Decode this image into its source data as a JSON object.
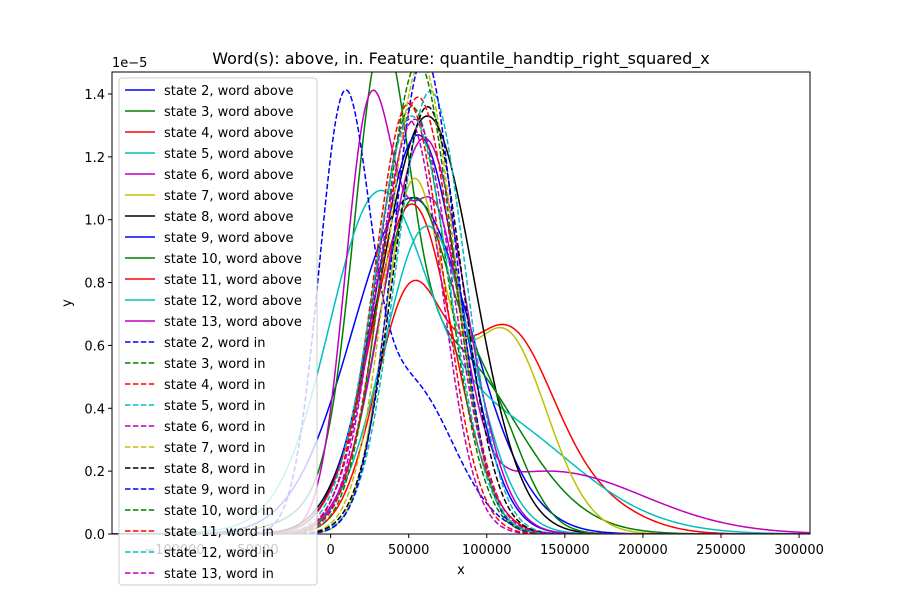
{
  "chart_data": {
    "type": "line",
    "title": "Word(s): above, in. Feature: quantile_handtip_right_squared_x",
    "xlabel": "x",
    "ylabel": "y",
    "y_multiplier_label": "1e−5",
    "xlim": [
      -140000,
      307000
    ],
    "ylim": [
      0,
      1.47
    ],
    "x_ticks": [
      0,
      50000,
      100000,
      150000,
      200000,
      250000,
      300000
    ],
    "x_tick_labels": [
      "0",
      "50000",
      "100000",
      "150000",
      "200000",
      "250000",
      "300000"
    ],
    "x_ticks_partial": [
      -100000,
      -50000
    ],
    "x_ticks_partial_labels": [
      "−100000",
      "−50000"
    ],
    "y_ticks": [
      0,
      0.2,
      0.4,
      0.6,
      0.8,
      1.0,
      1.2,
      1.4
    ],
    "y_tick_labels": [
      "0.0",
      "0.2",
      "0.4",
      "0.6",
      "0.8",
      "1.0",
      "1.2",
      "1.4"
    ],
    "grid": false,
    "legend_position": "upper-left",
    "series": [
      {
        "name": "state 2, word above",
        "color": "#0000ff",
        "dash": "solid",
        "components": [
          {
            "w": 1,
            "mu": 52000,
            "sigma": 38000,
            "peak": 1.07
          }
        ]
      },
      {
        "name": "state 3, word above",
        "color": "#008000",
        "dash": "solid",
        "components": [
          {
            "w": 1,
            "mu": 32000,
            "sigma": 17000,
            "peak": 1.17
          },
          {
            "w": 1,
            "mu": 72000,
            "sigma": 45000,
            "peak": 0.6
          }
        ]
      },
      {
        "name": "state 4, word above",
        "color": "#ff0000",
        "dash": "solid",
        "components": [
          {
            "w": 1,
            "mu": 50000,
            "sigma": 22000,
            "peak": 0.72
          },
          {
            "w": 1,
            "mu": 112000,
            "sigma": 30000,
            "peak": 0.64
          },
          {
            "w": 1,
            "mu": 170000,
            "sigma": 30000,
            "peak": 0.08
          }
        ]
      },
      {
        "name": "state 5, word above",
        "color": "#00bfbf",
        "dash": "solid",
        "components": [
          {
            "w": 1,
            "mu": 28000,
            "sigma": 30000,
            "peak": 0.85
          },
          {
            "w": 1,
            "mu": 90000,
            "sigma": 60000,
            "peak": 0.4
          }
        ]
      },
      {
        "name": "state 6, word above",
        "color": "#bf00bf",
        "dash": "solid",
        "components": [
          {
            "w": 1,
            "mu": 25000,
            "sigma": 16000,
            "peak": 1.3
          },
          {
            "w": 1,
            "mu": 66000,
            "sigma": 18000,
            "peak": 0.92
          },
          {
            "w": 1,
            "mu": 140000,
            "sigma": 60000,
            "peak": 0.2
          }
        ]
      },
      {
        "name": "state 7, word above",
        "color": "#bfbf00",
        "dash": "solid",
        "components": [
          {
            "w": 1,
            "mu": 52000,
            "sigma": 18000,
            "peak": 1.05
          },
          {
            "w": 1,
            "mu": 110000,
            "sigma": 28000,
            "peak": 0.65
          }
        ]
      },
      {
        "name": "state 8, word above",
        "color": "#000000",
        "dash": "solid",
        "components": [
          {
            "w": 1,
            "mu": 62000,
            "sigma": 30000,
            "peak": 1.33
          }
        ]
      },
      {
        "name": "state 9, word above",
        "color": "#0000ff",
        "dash": "solid",
        "components": [
          {
            "w": 1,
            "mu": 56000,
            "sigma": 27000,
            "peak": 1.27
          }
        ]
      },
      {
        "name": "state 10, word above",
        "color": "#008000",
        "dash": "solid",
        "components": [
          {
            "w": 1,
            "mu": 52000,
            "sigma": 23000,
            "peak": 1.03
          },
          {
            "w": 1,
            "mu": 100000,
            "sigma": 22000,
            "peak": 0.4
          }
        ]
      },
      {
        "name": "state 11, word above",
        "color": "#ff0000",
        "dash": "solid",
        "components": [
          {
            "w": 1,
            "mu": 52000,
            "sigma": 26000,
            "peak": 1.05
          }
        ]
      },
      {
        "name": "state 12, word above",
        "color": "#00bfbf",
        "dash": "solid",
        "components": [
          {
            "w": 1,
            "mu": 62000,
            "sigma": 28000,
            "peak": 0.98
          }
        ]
      },
      {
        "name": "state 13, word above",
        "color": "#bf00bf",
        "dash": "solid",
        "components": [
          {
            "w": 1,
            "mu": 60000,
            "sigma": 26000,
            "peak": 1.26
          }
        ]
      },
      {
        "name": "state 2, word in",
        "color": "#0000ff",
        "dash": "dashed",
        "components": [
          {
            "w": 1,
            "mu": 8000,
            "sigma": 16000,
            "peak": 1.25
          },
          {
            "w": 1,
            "mu": 50000,
            "sigma": 28000,
            "peak": 0.48
          }
        ]
      },
      {
        "name": "state 3, word in",
        "color": "#008000",
        "dash": "dashed",
        "components": [
          {
            "w": 1,
            "mu": 52000,
            "sigma": 23000,
            "peak": 1.36
          }
        ]
      },
      {
        "name": "state 4, word in",
        "color": "#ff0000",
        "dash": "dashed",
        "components": [
          {
            "w": 1,
            "mu": 56000,
            "sigma": 23000,
            "peak": 1.39
          }
        ]
      },
      {
        "name": "state 5, word in",
        "color": "#00bfbf",
        "dash": "dashed",
        "components": [
          {
            "w": 1,
            "mu": 64000,
            "sigma": 22000,
            "peak": 1.41
          }
        ]
      },
      {
        "name": "state 6, word in",
        "color": "#bf00bf",
        "dash": "dashed",
        "components": [
          {
            "w": 1,
            "mu": 50000,
            "sigma": 21000,
            "peak": 1.32
          }
        ]
      },
      {
        "name": "state 7, word in",
        "color": "#bfbf00",
        "dash": "dashed",
        "components": [
          {
            "w": 1,
            "mu": 58000,
            "sigma": 21000,
            "peak": 1.5
          }
        ]
      },
      {
        "name": "state 8, word in",
        "color": "#000000",
        "dash": "dashed",
        "components": [
          {
            "w": 1,
            "mu": 62000,
            "sigma": 22000,
            "peak": 1.36
          }
        ]
      },
      {
        "name": "state 9, word in",
        "color": "#0000ff",
        "dash": "dashed",
        "components": [
          {
            "w": 1,
            "mu": 60000,
            "sigma": 20000,
            "peak": 1.52
          }
        ]
      },
      {
        "name": "state 10, word in",
        "color": "#008000",
        "dash": "dashed",
        "components": [
          {
            "w": 1,
            "mu": 56000,
            "sigma": 22000,
            "peak": 1.5
          }
        ]
      },
      {
        "name": "state 11, word in",
        "color": "#ff0000",
        "dash": "dashed",
        "components": [
          {
            "w": 1,
            "mu": 50000,
            "sigma": 22000,
            "peak": 1.37
          }
        ]
      },
      {
        "name": "state 12, word in",
        "color": "#00bfbf",
        "dash": "dashed",
        "components": [
          {
            "w": 1,
            "mu": 52000,
            "sigma": 24000,
            "peak": 1.33
          }
        ]
      },
      {
        "name": "state 13, word in",
        "color": "#bf00bf",
        "dash": "dashed",
        "components": [
          {
            "w": 1,
            "mu": 54000,
            "sigma": 24000,
            "peak": 1.32
          }
        ]
      }
    ]
  }
}
